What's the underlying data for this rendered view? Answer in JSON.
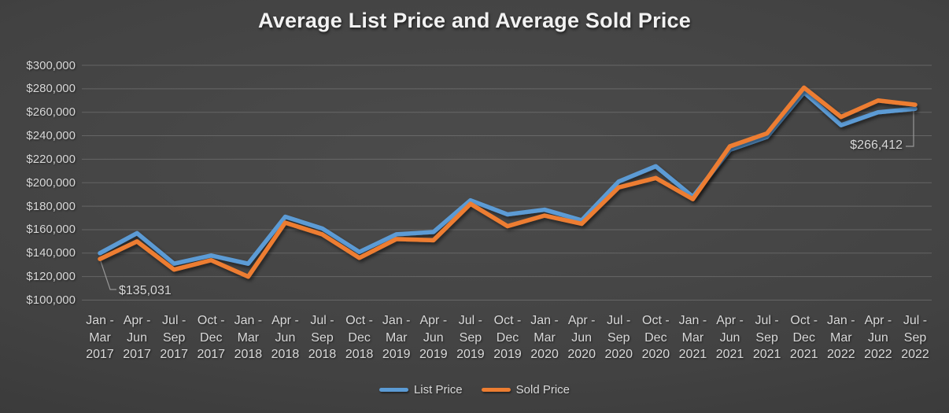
{
  "title": "Average List Price and Average Sold Price",
  "annotations": {
    "first": {
      "text": "$135,031",
      "series": "Sold Price",
      "category": "Jan - Mar 2017"
    },
    "last": {
      "text": "$266,412",
      "series": "Sold Price",
      "category": "Jul - Sep 2022"
    }
  },
  "legend": {
    "items": [
      {
        "label": "List Price",
        "color": "#5B9BD5"
      },
      {
        "label": "Sold Price",
        "color": "#ED7D31"
      }
    ]
  },
  "colors": {
    "list_price": "#5B9BD5",
    "sold_price": "#ED7D31",
    "axis_text": "#D9D9D9",
    "title_text": "#F2F2F2",
    "gridline": "#9B9B9B",
    "leader_line": "#A0A0A0",
    "background": "#424242"
  },
  "chart_data": {
    "type": "line",
    "title": "Average List Price and Average Sold Price",
    "xlabel": "",
    "ylabel": "",
    "grid": true,
    "legend_position": "bottom",
    "ylim": [
      100000,
      300000
    ],
    "ytick_step": 20000,
    "y_tick_labels": [
      "$300,000",
      "$280,000",
      "$260,000",
      "$240,000",
      "$220,000",
      "$200,000",
      "$180,000",
      "$160,000",
      "$140,000",
      "$120,000",
      "$100,000"
    ],
    "categories": [
      "Jan - Mar 2017",
      "Apr - Jun 2017",
      "Jul - Sep 2017",
      "Oct - Dec 2017",
      "Jan - Mar 2018",
      "Apr - Jun 2018",
      "Jul - Sep 2018",
      "Oct - Dec 2018",
      "Jan - Mar 2019",
      "Apr - Jun 2019",
      "Jul - Sep 2019",
      "Oct - Dec 2019",
      "Jan - Mar 2020",
      "Apr - Jun 2020",
      "Jul - Sep 2020",
      "Oct - Dec 2020",
      "Jan - Mar 2021",
      "Apr - Jun 2021",
      "Jul - Sep 2021",
      "Oct - Dec 2021",
      "Jan - Mar 2022",
      "Apr - Jun 2022",
      "Jul - Sep 2022"
    ],
    "category_lines": [
      [
        "Jan -",
        "Mar",
        "2017"
      ],
      [
        "Apr -",
        "Jun",
        "2017"
      ],
      [
        "Jul -",
        "Sep",
        "2017"
      ],
      [
        "Oct -",
        "Dec",
        "2017"
      ],
      [
        "Jan -",
        "Mar",
        "2018"
      ],
      [
        "Apr -",
        "Jun",
        "2018"
      ],
      [
        "Jul -",
        "Sep",
        "2018"
      ],
      [
        "Oct -",
        "Dec",
        "2018"
      ],
      [
        "Jan -",
        "Mar",
        "2019"
      ],
      [
        "Apr -",
        "Jun",
        "2019"
      ],
      [
        "Jul -",
        "Sep",
        "2019"
      ],
      [
        "Oct -",
        "Dec",
        "2019"
      ],
      [
        "Jan -",
        "Mar",
        "2020"
      ],
      [
        "Apr -",
        "Jun",
        "2020"
      ],
      [
        "Jul -",
        "Sep",
        "2020"
      ],
      [
        "Oct -",
        "Dec",
        "2020"
      ],
      [
        "Jan -",
        "Mar",
        "2021"
      ],
      [
        "Apr -",
        "Jun",
        "2021"
      ],
      [
        "Jul -",
        "Sep",
        "2021"
      ],
      [
        "Oct -",
        "Dec",
        "2021"
      ],
      [
        "Jan -",
        "Mar",
        "2022"
      ],
      [
        "Apr -",
        "Jun",
        "2022"
      ],
      [
        "Jul -",
        "Sep",
        "2022"
      ]
    ],
    "series": [
      {
        "name": "List Price",
        "color": "#5B9BD5",
        "values": [
          140000,
          157000,
          131000,
          138000,
          131000,
          171000,
          161000,
          141000,
          156000,
          158000,
          185000,
          173000,
          177000,
          168000,
          201000,
          214000,
          188000,
          228000,
          239000,
          277000,
          249000,
          260000,
          263000
        ]
      },
      {
        "name": "Sold Price",
        "color": "#ED7D31",
        "values": [
          135031,
          150000,
          126000,
          134000,
          120000,
          166000,
          156000,
          136000,
          152000,
          151000,
          182000,
          163000,
          172000,
          165000,
          196000,
          204000,
          186000,
          231000,
          242000,
          281000,
          256000,
          270000,
          266412
        ]
      }
    ]
  }
}
